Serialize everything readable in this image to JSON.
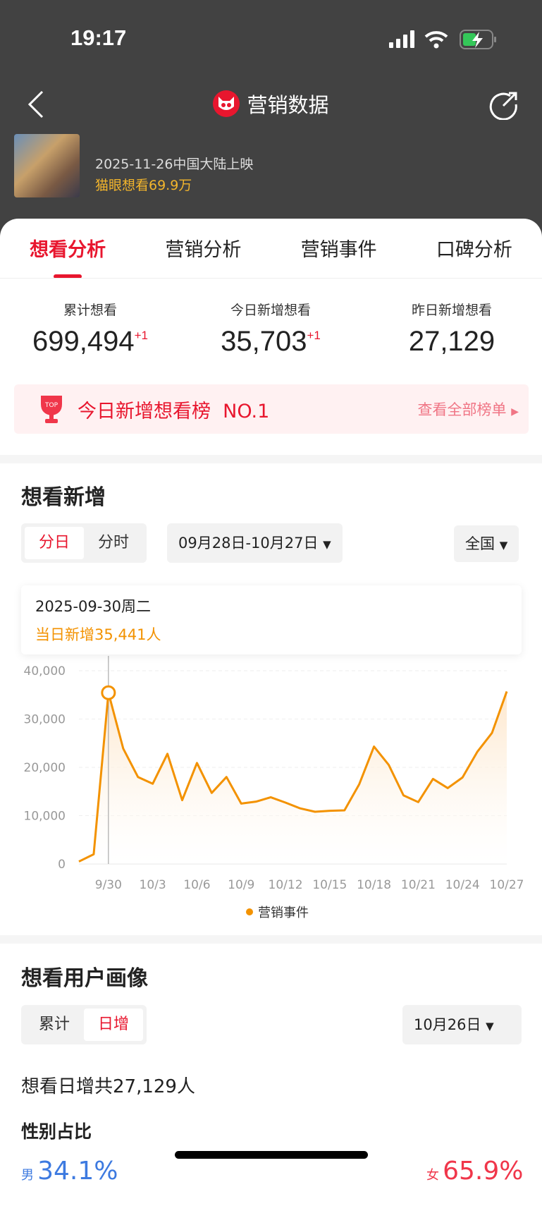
{
  "status_bar": {
    "time": "19:17"
  },
  "nav": {
    "title": "营销数据",
    "back_icon": "chevron-left-icon",
    "share_icon": "share-icon"
  },
  "movie": {
    "release": "2025-11-26中国大陆上映",
    "want": "猫眼想看69.9万"
  },
  "tabs": [
    {
      "label": "想看分析",
      "active": true
    },
    {
      "label": "营销分析"
    },
    {
      "label": "营销事件"
    },
    {
      "label": "口碑分析"
    }
  ],
  "stats": [
    {
      "label": "累计想看",
      "value": "699,494",
      "inc": "+1"
    },
    {
      "label": "今日新增想看",
      "value": "35,703",
      "inc": "+1"
    },
    {
      "label": "昨日新增想看",
      "value": "27,129"
    }
  ],
  "rank_banner": {
    "badge": "TOP",
    "text": "今日新增想看榜  NO.1",
    "link": "查看全部榜单"
  },
  "trend": {
    "title": "想看新增",
    "granularity": [
      {
        "label": "分日",
        "active": true
      },
      {
        "label": "分时"
      }
    ],
    "date_range": "09月28日-10月27日",
    "region": "全国",
    "tooltip": {
      "date": "2025-09-30周二",
      "value": "当日新增35,441人"
    }
  },
  "chart_data": {
    "type": "area",
    "x": [
      "9/28",
      "9/29",
      "9/30",
      "10/1",
      "10/2",
      "10/3",
      "10/4",
      "10/5",
      "10/6",
      "10/7",
      "10/8",
      "10/9",
      "10/10",
      "10/11",
      "10/12",
      "10/13",
      "10/14",
      "10/15",
      "10/16",
      "10/17",
      "10/18",
      "10/19",
      "10/20",
      "10/21",
      "10/22",
      "10/23",
      "10/24",
      "10/25",
      "10/26",
      "10/27"
    ],
    "x_tick_labels": [
      "9/30",
      "10/3",
      "10/6",
      "10/9",
      "10/12",
      "10/15",
      "10/18",
      "10/21",
      "10/24",
      "10/27"
    ],
    "y_tick_labels": [
      "0",
      "10,000",
      "20,000",
      "30,000",
      "40,000"
    ],
    "ylim": [
      0,
      40000
    ],
    "grid": true,
    "series": [
      {
        "name": "营销事件",
        "color": "#f39200",
        "values": [
          500,
          2000,
          35441,
          23900,
          18000,
          16600,
          22800,
          13200,
          20900,
          14700,
          18000,
          12500,
          12900,
          13800,
          12700,
          11500,
          10800,
          11000,
          11100,
          16500,
          24300,
          20500,
          14200,
          12800,
          17600,
          15700,
          17900,
          23200,
          27129,
          35703
        ]
      }
    ],
    "highlight": "9/30",
    "legend": "bottom"
  },
  "portrait": {
    "title": "想看用户画像",
    "mode": [
      {
        "label": "累计"
      },
      {
        "label": "日增",
        "active": true
      }
    ],
    "date": "10月26日",
    "total": "想看日增共27,129人",
    "gender_title": "性别占比",
    "male_label": "男",
    "male": "34.1%",
    "female_label": "女",
    "female": "65.9%"
  }
}
